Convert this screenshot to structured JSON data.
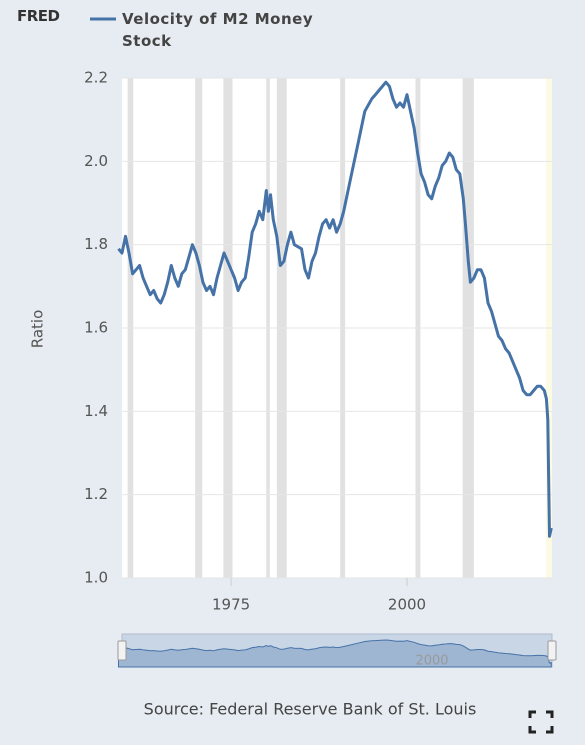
{
  "logo": "FRED",
  "chart_data": {
    "type": "line",
    "y_label": "Ratio",
    "source": "Source: Federal Reserve Bank of St. Louis",
    "series": [
      {
        "name": "Velocity of M2 Money Stock",
        "color": "#4572a7",
        "x": [
          1959.0,
          1959.5,
          1960,
          1960.5,
          1961,
          1961.5,
          1962,
          1962.5,
          1963,
          1963.5,
          1964,
          1964.5,
          1965,
          1965.5,
          1966,
          1966.5,
          1967,
          1967.5,
          1968,
          1968.5,
          1969,
          1969.5,
          1970,
          1970.5,
          1971,
          1971.5,
          1972,
          1972.5,
          1973,
          1973.5,
          1974,
          1974.5,
          1975,
          1975.5,
          1976,
          1976.5,
          1977,
          1977.5,
          1978,
          1978.5,
          1979,
          1979.5,
          1980,
          1980.3,
          1980.6,
          1981,
          1981.5,
          1982,
          1982.5,
          1983,
          1983.5,
          1984,
          1985,
          1985.5,
          1986,
          1986.5,
          1987,
          1987.5,
          1988,
          1988.5,
          1989,
          1989.5,
          1990,
          1990.5,
          1991,
          1992,
          1993,
          1994,
          1995,
          1995.5,
          1996,
          1997,
          1997.5,
          1998,
          1998.5,
          1999,
          1999.5,
          2000,
          2000.5,
          2001,
          2001.5,
          2002,
          2002.5,
          2003,
          2003.5,
          2004,
          2004.5,
          2005,
          2005.5,
          2006,
          2006.5,
          2007,
          2007.5,
          2008,
          2008.3,
          2008.7,
          2009,
          2009.5,
          2010,
          2010.5,
          2011,
          2011.5,
          2012,
          2012.5,
          2013,
          2013.5,
          2014,
          2014.5,
          2015,
          2015.5,
          2016,
          2016.5,
          2017,
          2017.5,
          2018,
          2018.5,
          2019,
          2019.5,
          2019.8,
          2020.0,
          2020.25,
          2020.5
        ],
        "values": [
          1.79,
          1.78,
          1.82,
          1.78,
          1.73,
          1.74,
          1.75,
          1.72,
          1.7,
          1.68,
          1.69,
          1.67,
          1.66,
          1.68,
          1.71,
          1.75,
          1.72,
          1.7,
          1.73,
          1.74,
          1.77,
          1.8,
          1.78,
          1.75,
          1.71,
          1.69,
          1.7,
          1.68,
          1.72,
          1.75,
          1.78,
          1.76,
          1.74,
          1.72,
          1.69,
          1.71,
          1.72,
          1.77,
          1.83,
          1.85,
          1.88,
          1.86,
          1.93,
          1.88,
          1.92,
          1.86,
          1.82,
          1.75,
          1.76,
          1.8,
          1.83,
          1.8,
          1.79,
          1.74,
          1.72,
          1.76,
          1.78,
          1.82,
          1.85,
          1.86,
          1.84,
          1.86,
          1.83,
          1.85,
          1.88,
          1.96,
          2.04,
          2.12,
          2.15,
          2.16,
          2.17,
          2.19,
          2.18,
          2.15,
          2.13,
          2.14,
          2.13,
          2.16,
          2.12,
          2.08,
          2.02,
          1.97,
          1.95,
          1.92,
          1.91,
          1.94,
          1.96,
          1.99,
          2.0,
          2.02,
          2.01,
          1.98,
          1.97,
          1.91,
          1.85,
          1.76,
          1.71,
          1.72,
          1.74,
          1.74,
          1.72,
          1.66,
          1.64,
          1.61,
          1.58,
          1.57,
          1.55,
          1.54,
          1.52,
          1.5,
          1.48,
          1.45,
          1.44,
          1.44,
          1.45,
          1.46,
          1.46,
          1.45,
          1.43,
          1.38,
          1.1,
          1.12
        ]
      }
    ],
    "recessions": [
      [
        1960.3,
        1961.1
      ],
      [
        1969.9,
        1970.9
      ],
      [
        1973.9,
        1975.2
      ],
      [
        1980.0,
        1980.5
      ],
      [
        1981.5,
        1982.9
      ],
      [
        1990.5,
        1991.2
      ],
      [
        2001.2,
        2001.9
      ],
      [
        2007.9,
        2009.5
      ]
    ],
    "xlim": [
      1959.5,
      2020.6
    ],
    "xticks": [
      1975,
      2000
    ],
    "ylim": [
      1.0,
      2.2
    ],
    "yticks": [
      {
        "value": 1.0,
        "label": "1.0"
      },
      {
        "value": 1.2,
        "label": "1.2"
      },
      {
        "value": 1.4,
        "label": "1.4"
      },
      {
        "value": 1.6,
        "label": "1.6"
      },
      {
        "value": 1.8,
        "label": "1.8"
      },
      {
        "value": 2.0,
        "label": "2.0"
      },
      {
        "value": 2.2,
        "label": "2.2"
      }
    ],
    "grid": true
  }
}
